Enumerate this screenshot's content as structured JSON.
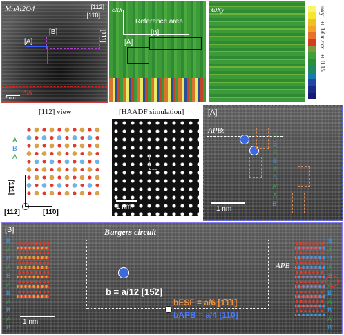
{
  "panelA": {
    "title": "MnAl2O4",
    "dir_top": "[112]",
    "dir_bar": "[11̄0]",
    "dir_side": "[111]",
    "label_A": "[A]",
    "label_B": "[B]",
    "substrate": "AlN",
    "scale": "2 nm"
  },
  "panelExx": {
    "title": "εxx",
    "ref": "Reference area",
    "label_A": "[A]",
    "label_B": "[B]"
  },
  "panelWxy": {
    "title": "ωxy"
  },
  "colorbar": {
    "label": "ωxy: ± 1/6π εxx: ± 0.15",
    "colors": [
      "#fbf36b",
      "#f6e62e",
      "#f0c020",
      "#f4a12a",
      "#e8712b",
      "#d63a25",
      "#7c9a3a",
      "#3fa03a",
      "#2b8f3a",
      "#1f8a62",
      "#1b7ab0",
      "#2147a6",
      "#1b2a8a",
      "#16187a"
    ]
  },
  "panelModel": {
    "title": "[112] view",
    "stack": [
      "A",
      "B",
      "A"
    ],
    "dir_up": "[111]",
    "dir_right": "[11̄0]",
    "dir_origin": "[112]"
  },
  "panelSim": {
    "title": "[HAADF simulation]",
    "scale": "1 nm"
  },
  "panelAzoom": {
    "tag": "[A]",
    "apbs": "APBs",
    "seq": [
      "A",
      "B",
      "A",
      "B",
      "A",
      "B",
      "A'",
      "A",
      "B'"
    ],
    "scale": "1 nm"
  },
  "panelBzoom": {
    "tag": "[B]",
    "burgers": "Burgers circuit",
    "apb": "APB",
    "seq_left": [
      "B",
      "A",
      "B",
      "A",
      "B",
      "A",
      "B",
      "A",
      "B",
      "A",
      "B"
    ],
    "seq_right": [
      "B",
      "A",
      "B",
      "A",
      "B",
      "A",
      "B'",
      "A'",
      "B'",
      "A'",
      "B'"
    ],
    "b_total": "b = a/12 [15̄2]",
    "b_esf": "bESF = a/6 [1̄1̄1]",
    "b_apb": "bAPB = a/4 [11̄0]",
    "scale": "1 nm"
  }
}
